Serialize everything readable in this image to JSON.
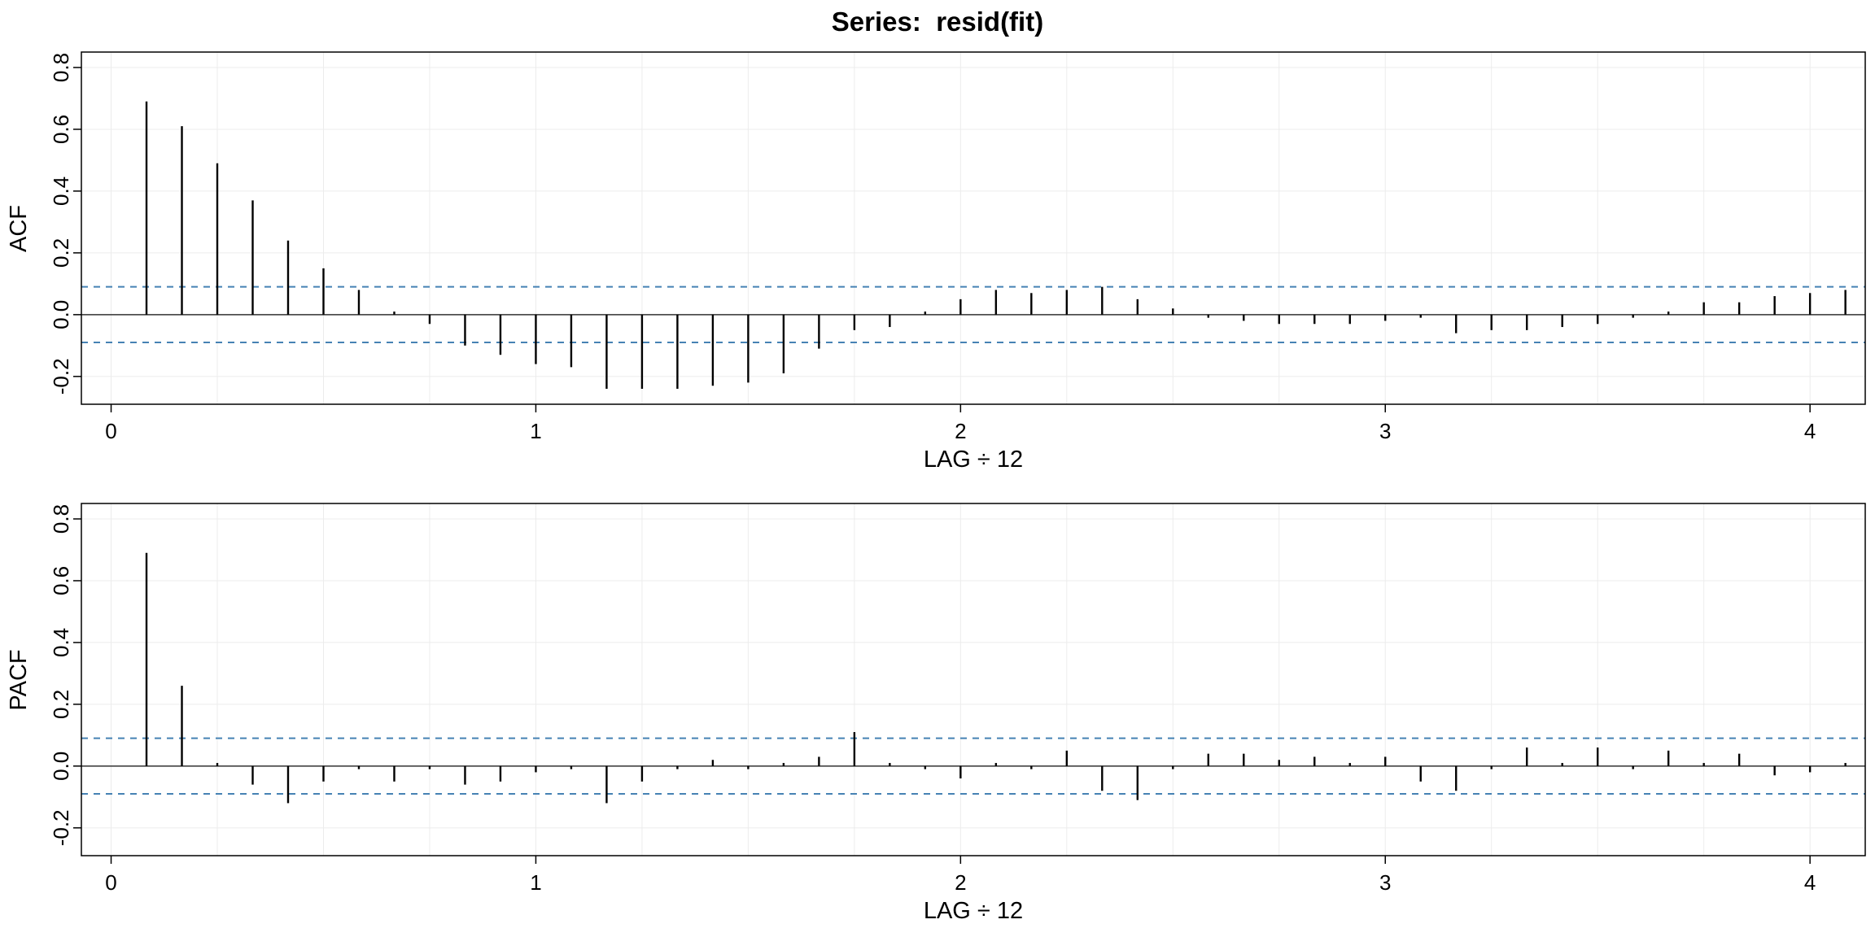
{
  "title": "Series:  resid(fit)",
  "accent_color": "#4682B4",
  "bar_color": "#000000",
  "grid_color": "#ececec",
  "chart_data": [
    {
      "type": "bar",
      "variant": "needle-acf",
      "title": "",
      "ylabel": "ACF",
      "xlabel": "LAG ÷ 12",
      "x_ticks": [
        0,
        1,
        2,
        3,
        4
      ],
      "y_ticks": [
        -0.2,
        0.0,
        0.2,
        0.4,
        0.6,
        0.8
      ],
      "xlim": [
        -0.07,
        4.13
      ],
      "ylim": [
        -0.29,
        0.85
      ],
      "grid": true,
      "grid_x_step": 0.25,
      "confidence_level": 0.09,
      "lag_divisor": 12,
      "lags": [
        1,
        2,
        3,
        4,
        5,
        6,
        7,
        8,
        9,
        10,
        11,
        12,
        13,
        14,
        15,
        16,
        17,
        18,
        19,
        20,
        21,
        22,
        23,
        24,
        25,
        26,
        27,
        28,
        29,
        30,
        31,
        32,
        33,
        34,
        35,
        36,
        37,
        38,
        39,
        40,
        41,
        42,
        43,
        44,
        45,
        46,
        47,
        48,
        49
      ],
      "values": [
        0.69,
        0.61,
        0.49,
        0.37,
        0.24,
        0.15,
        0.08,
        0.01,
        -0.03,
        -0.1,
        -0.13,
        -0.16,
        -0.17,
        -0.24,
        -0.24,
        -0.24,
        -0.23,
        -0.22,
        -0.19,
        -0.11,
        -0.05,
        -0.04,
        0.01,
        0.05,
        0.08,
        0.07,
        0.08,
        0.09,
        0.05,
        0.02,
        -0.01,
        -0.02,
        -0.03,
        -0.03,
        -0.03,
        -0.02,
        -0.01,
        -0.06,
        -0.05,
        -0.05,
        -0.04,
        -0.03,
        -0.01,
        0.01,
        0.04,
        0.04,
        0.06,
        0.07,
        0.08
      ]
    },
    {
      "type": "bar",
      "variant": "needle-pacf",
      "title": "",
      "ylabel": "PACF",
      "xlabel": "LAG ÷ 12",
      "x_ticks": [
        0,
        1,
        2,
        3,
        4
      ],
      "y_ticks": [
        -0.2,
        0.0,
        0.2,
        0.4,
        0.6,
        0.8
      ],
      "xlim": [
        -0.07,
        4.13
      ],
      "ylim": [
        -0.29,
        0.85
      ],
      "grid": true,
      "grid_x_step": 0.25,
      "confidence_level": 0.09,
      "lag_divisor": 12,
      "lags": [
        1,
        2,
        3,
        4,
        5,
        6,
        7,
        8,
        9,
        10,
        11,
        12,
        13,
        14,
        15,
        16,
        17,
        18,
        19,
        20,
        21,
        22,
        23,
        24,
        25,
        26,
        27,
        28,
        29,
        30,
        31,
        32,
        33,
        34,
        35,
        36,
        37,
        38,
        39,
        40,
        41,
        42,
        43,
        44,
        45,
        46,
        47,
        48,
        49
      ],
      "values": [
        0.69,
        0.26,
        0.01,
        -0.06,
        -0.12,
        -0.05,
        -0.01,
        -0.05,
        -0.01,
        -0.06,
        -0.05,
        -0.02,
        -0.01,
        -0.12,
        -0.05,
        -0.01,
        0.02,
        -0.01,
        0.01,
        0.03,
        0.11,
        0.01,
        -0.01,
        -0.04,
        0.01,
        -0.01,
        0.05,
        -0.08,
        -0.11,
        -0.01,
        0.04,
        0.04,
        0.02,
        0.03,
        0.01,
        0.03,
        -0.05,
        -0.08,
        -0.01,
        0.06,
        0.01,
        0.06,
        -0.01,
        0.05,
        0.01,
        0.04,
        -0.03,
        -0.02,
        0.01
      ]
    }
  ]
}
